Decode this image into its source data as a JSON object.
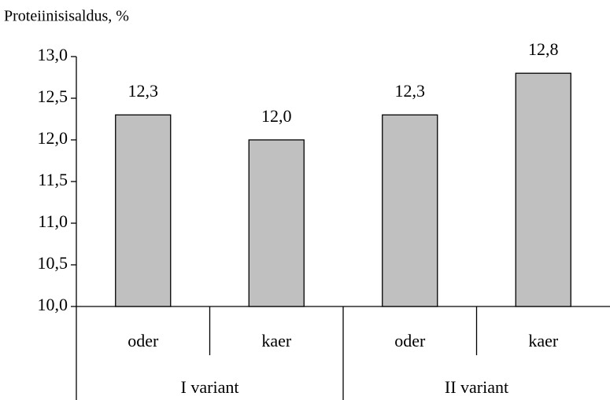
{
  "chart_data": {
    "type": "bar",
    "y_label": "Proteiinisisaldus, %",
    "color": "#c0c0c0",
    "groups": [
      {
        "label": "I variant",
        "categories": [
          "oder",
          "kaer"
        ],
        "values": [
          12.3,
          12.0
        ],
        "value_labels": [
          "12,3",
          "12,0"
        ]
      },
      {
        "label": "II variant",
        "categories": [
          "oder",
          "kaer"
        ],
        "values": [
          12.3,
          12.8
        ],
        "value_labels": [
          "12,3",
          "12,8"
        ]
      }
    ],
    "ylim": [
      10,
      13
    ],
    "yticks": [
      {
        "value": 10,
        "label": "10,0"
      },
      {
        "value": 10.5,
        "label": "10,5"
      },
      {
        "value": 11,
        "label": "11,0"
      },
      {
        "value": 11.5,
        "label": "11,5"
      },
      {
        "value": 12,
        "label": "12,0"
      },
      {
        "value": 12.5,
        "label": "12,5"
      },
      {
        "value": 13,
        "label": "13,0"
      }
    ]
  }
}
